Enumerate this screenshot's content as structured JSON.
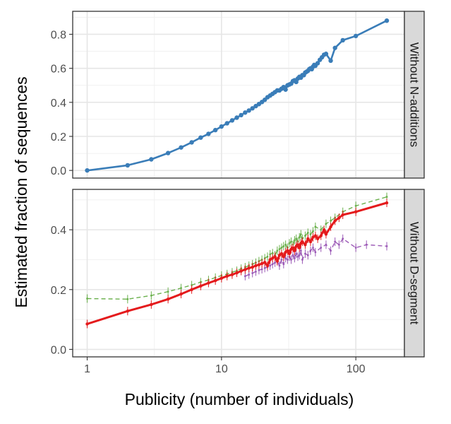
{
  "chart_data": {
    "type": "line",
    "xlabel": "Publicity (number of individuals)",
    "ylabel": "Estimated fraction of sequences",
    "x_scale": "log10",
    "x_range": [
      0.78,
      230
    ],
    "x_ticks": [
      1,
      10,
      100
    ],
    "x_tick_labels": [
      "1",
      "10",
      "100"
    ],
    "grid": true,
    "legend": "none",
    "panels": [
      {
        "strip": "Without N-additions",
        "y_range": [
          -0.045,
          0.935
        ],
        "y_ticks": [
          0,
          0.2,
          0.4,
          0.6,
          0.8
        ],
        "y_tick_labels": [
          "0.0",
          "0.2",
          "0.4",
          "0.6",
          "0.8"
        ],
        "series": [
          {
            "color": "#3a7db8",
            "style": "solid-points",
            "x": [
              1,
              2,
              3,
              4,
              5,
              6,
              7,
              8,
              9,
              10,
              11,
              12,
              13,
              14,
              15,
              16,
              17,
              18,
              19,
              20,
              21,
              22,
              23,
              24,
              25,
              26,
              27,
              28,
              29,
              30,
              31,
              32,
              33,
              34,
              35,
              36,
              37,
              38,
              39,
              40,
              41,
              42,
              43,
              44,
              45,
              46,
              47,
              48,
              49,
              50,
              52,
              54,
              56,
              58,
              60,
              65,
              70,
              80,
              100,
              170
            ],
            "y": [
              0.0,
              0.03,
              0.065,
              0.102,
              0.135,
              0.165,
              0.193,
              0.215,
              0.237,
              0.258,
              0.277,
              0.294,
              0.31,
              0.325,
              0.34,
              0.352,
              0.365,
              0.378,
              0.39,
              0.402,
              0.415,
              0.43,
              0.44,
              0.45,
              0.46,
              0.47,
              0.47,
              0.48,
              0.49,
              0.475,
              0.5,
              0.505,
              0.51,
              0.525,
              0.53,
              0.52,
              0.54,
              0.55,
              0.545,
              0.56,
              0.56,
              0.575,
              0.58,
              0.585,
              0.595,
              0.6,
              0.595,
              0.61,
              0.62,
              0.615,
              0.63,
              0.65,
              0.665,
              0.68,
              0.685,
              0.645,
              0.72,
              0.765,
              0.79,
              0.88
            ]
          }
        ]
      },
      {
        "strip": "Without D-segment",
        "y_range": [
          -0.025,
          0.535
        ],
        "y_ticks": [
          0,
          0.2,
          0.4
        ],
        "y_tick_labels": [
          "0.0",
          "0.2",
          "0.4"
        ],
        "series": [
          {
            "color": "#6ab04c",
            "style": "dashed",
            "x": [
              1,
              2,
              3,
              4,
              5,
              6,
              7,
              8,
              9,
              10,
              11,
              12,
              13,
              14,
              15,
              16,
              17,
              18,
              19,
              20,
              21,
              22,
              23,
              24,
              25,
              26,
              27,
              28,
              29,
              30,
              31,
              32,
              33,
              34,
              35,
              36,
              37,
              38,
              39,
              40,
              42,
              44,
              46,
              48,
              50,
              55,
              60,
              65,
              70,
              80,
              100,
              170
            ],
            "y": [
              0.17,
              0.168,
              0.18,
              0.193,
              0.205,
              0.215,
              0.225,
              0.232,
              0.24,
              0.247,
              0.252,
              0.258,
              0.263,
              0.27,
              0.275,
              0.28,
              0.285,
              0.29,
              0.295,
              0.3,
              0.305,
              0.31,
              0.318,
              0.322,
              0.315,
              0.33,
              0.335,
              0.34,
              0.345,
              0.35,
              0.34,
              0.355,
              0.36,
              0.35,
              0.365,
              0.37,
              0.36,
              0.375,
              0.385,
              0.37,
              0.38,
              0.39,
              0.385,
              0.395,
              0.41,
              0.4,
              0.42,
              0.43,
              0.44,
              0.46,
              0.48,
              0.51
            ]
          },
          {
            "color": "#9b59b6",
            "style": "dashed",
            "x": [
              15,
              16,
              17,
              18,
              19,
              20,
              21,
              22,
              23,
              24,
              25,
              26,
              27,
              28,
              29,
              30,
              31,
              32,
              33,
              34,
              35,
              36,
              37,
              38,
              39,
              40,
              42,
              44,
              46,
              48,
              50,
              55,
              60,
              65,
              70,
              75,
              80,
              100,
              120,
              170
            ],
            "y": [
              0.245,
              0.25,
              0.255,
              0.26,
              0.265,
              0.268,
              0.272,
              0.275,
              0.28,
              0.285,
              0.29,
              0.295,
              0.28,
              0.3,
              0.285,
              0.305,
              0.3,
              0.31,
              0.3,
              0.315,
              0.305,
              0.32,
              0.31,
              0.315,
              0.33,
              0.3,
              0.32,
              0.315,
              0.33,
              0.34,
              0.325,
              0.34,
              0.35,
              0.33,
              0.36,
              0.35,
              0.37,
              0.34,
              0.35,
              0.345
            ]
          },
          {
            "color": "#e41a1c",
            "style": "solid-thick",
            "x": [
              1,
              2,
              3,
              4,
              5,
              6,
              7,
              8,
              9,
              10,
              11,
              12,
              13,
              14,
              15,
              16,
              17,
              18,
              19,
              20,
              21,
              22,
              23,
              24,
              25,
              26,
              27,
              28,
              29,
              30,
              31,
              32,
              33,
              34,
              35,
              36,
              37,
              38,
              39,
              40,
              42,
              44,
              46,
              48,
              50,
              52,
              55,
              58,
              60,
              65,
              70,
              75,
              80,
              100,
              170
            ],
            "y": [
              0.085,
              0.128,
              0.15,
              0.168,
              0.185,
              0.2,
              0.212,
              0.222,
              0.23,
              0.238,
              0.245,
              0.25,
              0.256,
              0.262,
              0.267,
              0.272,
              0.275,
              0.28,
              0.283,
              0.287,
              0.291,
              0.28,
              0.3,
              0.305,
              0.31,
              0.295,
              0.315,
              0.32,
              0.31,
              0.325,
              0.33,
              0.32,
              0.335,
              0.34,
              0.33,
              0.345,
              0.35,
              0.34,
              0.355,
              0.36,
              0.35,
              0.37,
              0.36,
              0.375,
              0.38,
              0.37,
              0.38,
              0.4,
              0.385,
              0.41,
              0.43,
              0.44,
              0.45,
              0.46,
              0.49
            ]
          }
        ]
      }
    ]
  }
}
